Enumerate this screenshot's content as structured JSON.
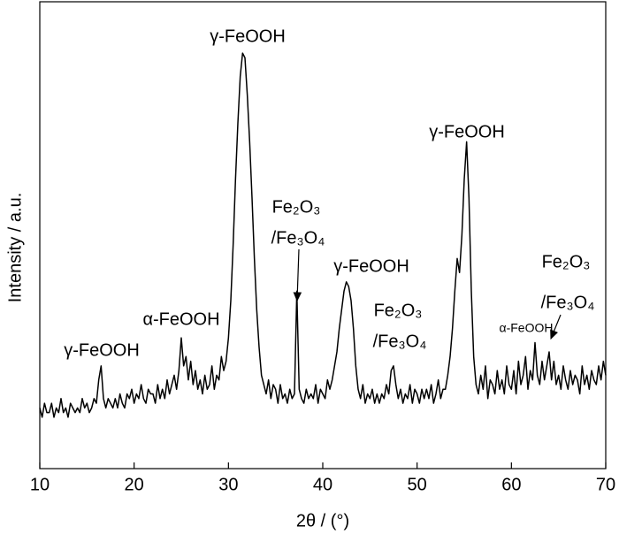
{
  "chart_data": {
    "type": "line",
    "xlabel": "2θ / (°)",
    "ylabel": "Intensity / a.u.",
    "xlim": [
      10,
      70
    ],
    "xticks": [
      10,
      20,
      30,
      40,
      50,
      60,
      70
    ],
    "ylim": [
      0,
      100
    ],
    "color": "#000000",
    "x": [
      10,
      10.25,
      10.5,
      10.75,
      11,
      11.25,
      11.5,
      11.75,
      12,
      12.25,
      12.5,
      12.75,
      13,
      13.25,
      13.5,
      13.75,
      14,
      14.25,
      14.5,
      14.75,
      15,
      15.25,
      15.5,
      15.75,
      16,
      16.25,
      16.5,
      16.75,
      17,
      17.25,
      17.5,
      17.75,
      18,
      18.25,
      18.5,
      18.75,
      19,
      19.25,
      19.5,
      19.75,
      20,
      20.25,
      20.5,
      20.75,
      21,
      21.25,
      21.5,
      21.75,
      22,
      22.25,
      22.5,
      22.75,
      23,
      23.25,
      23.5,
      23.75,
      24,
      24.25,
      24.5,
      24.75,
      25,
      25.25,
      25.5,
      25.75,
      26,
      26.25,
      26.5,
      26.75,
      27,
      27.25,
      27.5,
      27.75,
      28,
      28.25,
      28.5,
      28.75,
      29,
      29.25,
      29.5,
      29.75,
      30,
      30.25,
      30.5,
      30.75,
      31,
      31.25,
      31.5,
      31.75,
      32,
      32.25,
      32.5,
      32.75,
      33,
      33.25,
      33.5,
      33.75,
      34,
      34.25,
      34.5,
      34.75,
      35,
      35.25,
      35.5,
      35.75,
      36,
      36.25,
      36.5,
      36.75,
      37,
      37.25,
      37.5,
      37.75,
      38,
      38.25,
      38.5,
      38.75,
      39,
      39.25,
      39.5,
      39.75,
      40,
      40.25,
      40.5,
      40.75,
      41,
      41.25,
      41.5,
      41.75,
      42,
      42.25,
      42.5,
      42.75,
      43,
      43.25,
      43.5,
      43.75,
      44,
      44.25,
      44.5,
      44.75,
      45,
      45.25,
      45.5,
      45.75,
      46,
      46.25,
      46.5,
      46.75,
      47,
      47.25,
      47.5,
      47.75,
      48,
      48.25,
      48.5,
      48.75,
      49,
      49.25,
      49.5,
      49.75,
      50,
      50.25,
      50.5,
      50.75,
      51,
      51.25,
      51.5,
      51.75,
      52,
      52.25,
      52.5,
      52.75,
      53,
      53.25,
      53.5,
      53.75,
      54,
      54.25,
      54.5,
      54.75,
      55,
      55.25,
      55.5,
      55.75,
      56,
      56.25,
      56.5,
      56.75,
      57,
      57.25,
      57.5,
      57.75,
      58,
      58.25,
      58.5,
      58.75,
      59,
      59.25,
      59.5,
      59.75,
      60,
      60.25,
      60.5,
      60.75,
      61,
      61.25,
      61.5,
      61.75,
      62,
      62.25,
      62.5,
      62.75,
      63,
      63.25,
      63.5,
      63.75,
      64,
      64.25,
      64.5,
      64.75,
      65,
      65.25,
      65.5,
      65.75,
      66,
      66.25,
      66.5,
      66.75,
      67,
      67.25,
      67.5,
      67.75,
      68,
      68.25,
      68.5,
      68.75,
      69,
      69.25,
      69.5,
      69.75,
      70
    ],
    "values": [
      13,
      11,
      14,
      12,
      12,
      14,
      11,
      13,
      12,
      15,
      12,
      13,
      11,
      14,
      13,
      12,
      13,
      12,
      15,
      13,
      14,
      12,
      13,
      15,
      14,
      19,
      22,
      15,
      13,
      15,
      14,
      13,
      15,
      13,
      16,
      14,
      13,
      16,
      15,
      17,
      14,
      16,
      15,
      18,
      15,
      14,
      17,
      16,
      16,
      14,
      18,
      15,
      17,
      15,
      19,
      16,
      18,
      20,
      17,
      21,
      28,
      22,
      24,
      19,
      23,
      18,
      21,
      17,
      19,
      16,
      20,
      17,
      18,
      22,
      17,
      20,
      19,
      24,
      21,
      23,
      28,
      36,
      48,
      62,
      74,
      84,
      89,
      88,
      80,
      70,
      58,
      45,
      34,
      26,
      20,
      18,
      16,
      19,
      15,
      18,
      17,
      14,
      18,
      15,
      16,
      14,
      17,
      15,
      16,
      38,
      17,
      15,
      14,
      17,
      15,
      16,
      15,
      18,
      14,
      17,
      16,
      15,
      19,
      17,
      19,
      22,
      25,
      30,
      34,
      38,
      40,
      39,
      36,
      30,
      22,
      17,
      15,
      18,
      14,
      16,
      15,
      17,
      14,
      16,
      14,
      16,
      15,
      18,
      16,
      21,
      22,
      18,
      15,
      17,
      14,
      16,
      15,
      18,
      14,
      17,
      16,
      14,
      17,
      15,
      17,
      15,
      18,
      14,
      16,
      19,
      15,
      17,
      17,
      20,
      24,
      30,
      38,
      45,
      42,
      50,
      62,
      70,
      58,
      38,
      24,
      18,
      16,
      20,
      17,
      22,
      15,
      19,
      18,
      16,
      21,
      17,
      19,
      16,
      22,
      18,
      17,
      21,
      16,
      23,
      18,
      20,
      24,
      17,
      21,
      19,
      27,
      20,
      18,
      23,
      19,
      22,
      25,
      19,
      23,
      18,
      20,
      17,
      22,
      19,
      17,
      21,
      18,
      20,
      19,
      16,
      22,
      18,
      20,
      17,
      21,
      19,
      18,
      22,
      19,
      23,
      20
    ],
    "annotations": [
      "γ-FeOOH",
      "Fe₂O₃",
      "/Fe₃O₄",
      "γ-FeOOH",
      "Fe₂O₃",
      "/Fe₃O₄",
      "γ-FeOOH",
      "Fe₂O₃",
      "/Fe₃O₄",
      "α-FeOOH",
      "α-FeOOH",
      "γ-FeOOH"
    ]
  }
}
